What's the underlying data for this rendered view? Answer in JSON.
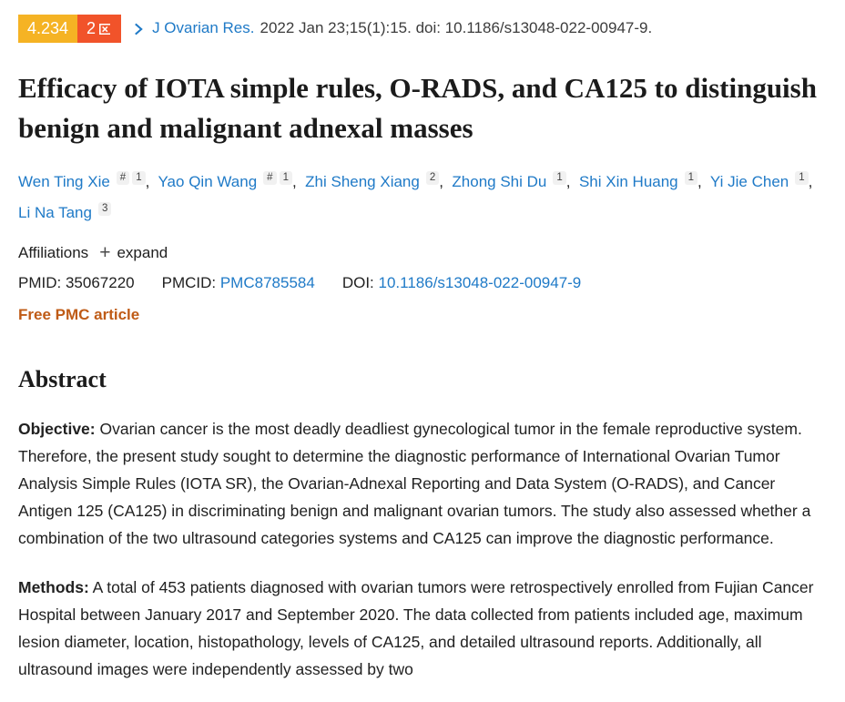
{
  "colors": {
    "link_blue": "#1f7ac7",
    "badge_yellow": "#f5b324",
    "badge_red": "#f1532a",
    "free_pmc_orange": "#bf5b16",
    "text_dark": "#212121"
  },
  "header": {
    "impact_factor": "4.234",
    "zone_badge": "2区",
    "zone_number": "2",
    "journal": "J Ovarian Res.",
    "citation": "2022 Jan 23;15(1):15. doi: 10.1186/s13048-022-00947-9."
  },
  "article": {
    "title": "Efficacy of IOTA simple rules, O-RADS, and CA125 to distinguish benign and malignant adnexal masses",
    "authors": [
      {
        "name": "Wen Ting Xie",
        "sups": [
          "#",
          "1"
        ]
      },
      {
        "name": "Yao Qin Wang",
        "sups": [
          "#",
          "1"
        ]
      },
      {
        "name": "Zhi Sheng Xiang",
        "sups": [
          "2"
        ]
      },
      {
        "name": "Zhong Shi Du",
        "sups": [
          "1"
        ]
      },
      {
        "name": "Shi Xin Huang",
        "sups": [
          "1"
        ]
      },
      {
        "name": "Yi Jie Chen",
        "sups": [
          "1"
        ]
      },
      {
        "name": "Li Na Tang",
        "sups": [
          "3"
        ]
      }
    ],
    "affiliations_label": "Affiliations",
    "expand_label": "expand",
    "pmid_label": "PMID:",
    "pmid": "35067220",
    "pmcid_label": "PMCID:",
    "pmcid": "PMC8785584",
    "doi_label": "DOI:",
    "doi": "10.1186/s13048-022-00947-9",
    "free_pmc_label": "Free PMC article"
  },
  "abstract": {
    "heading": "Abstract",
    "sections": [
      {
        "label": "Objective:",
        "text": "Ovarian cancer is the most deadly deadliest gynecological tumor in the female reproductive system. Therefore, the present study sought to determine the diagnostic performance of International Ovarian Tumor Analysis Simple Rules (IOTA SR), the Ovarian-Adnexal Reporting and Data System (O-RADS), and Cancer Antigen 125 (CA125) in discriminating benign and malignant ovarian tumors. The study also assessed whether a combination of the two ultrasound categories systems and CA125 can improve the diagnostic performance."
      },
      {
        "label": "Methods:",
        "text": "A total of 453 patients diagnosed with ovarian tumors were retrospectively enrolled from Fujian Cancer Hospital between January 2017 and September 2020. The data collected from patients included age, maximum lesion diameter, location, histopathology, levels of CA125, and detailed ultrasound reports. Additionally, all ultrasound images were independently assessed by two"
      }
    ]
  }
}
